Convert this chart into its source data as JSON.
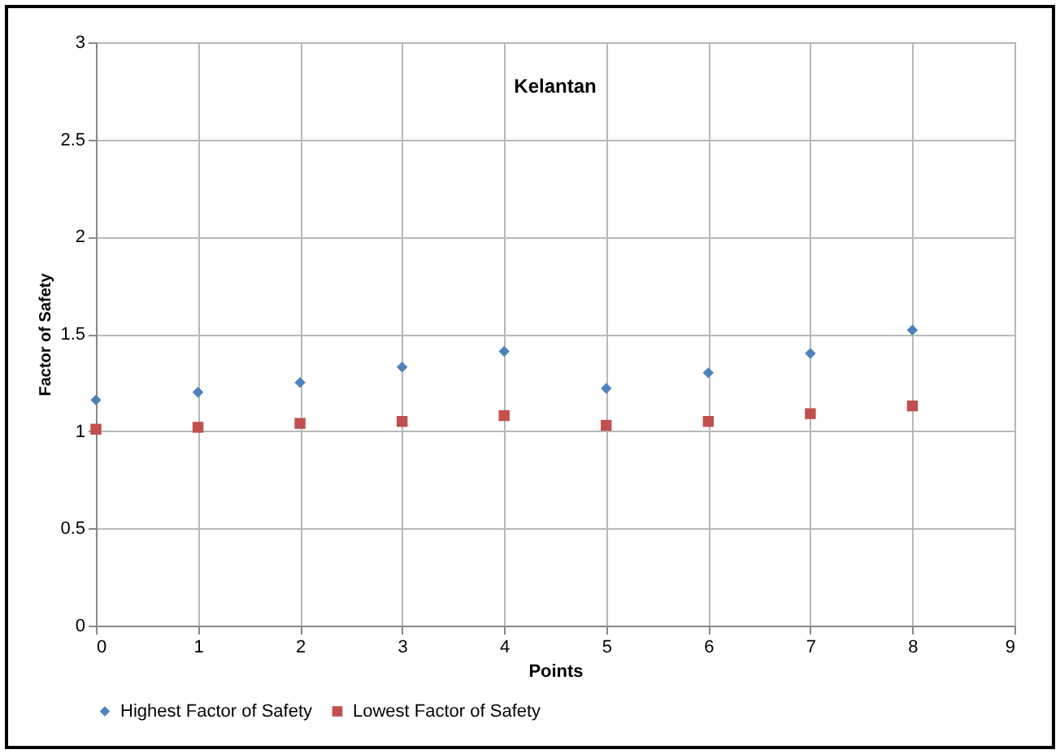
{
  "chart_data": {
    "type": "scatter",
    "title": "Kelantan",
    "xlabel": "Points",
    "ylabel": "Factor of Safety",
    "x": [
      0,
      1,
      2,
      3,
      4,
      5,
      6,
      7,
      8
    ],
    "series": [
      {
        "name": "Highest Factor of Safety",
        "color": "#4f81bd",
        "marker": "diamond",
        "values": [
          1.16,
          1.2,
          1.25,
          1.33,
          1.41,
          1.22,
          1.3,
          1.4,
          1.52
        ]
      },
      {
        "name": "Lowest Factor of Safety",
        "color": "#c0504d",
        "marker": "square",
        "values": [
          1.01,
          1.02,
          1.04,
          1.05,
          1.08,
          1.03,
          1.05,
          1.09,
          1.13
        ]
      }
    ],
    "xlim": [
      0,
      9
    ],
    "xticks": [
      0,
      1,
      2,
      3,
      4,
      5,
      6,
      7,
      8,
      9
    ],
    "ylim": [
      0,
      3
    ],
    "yticks": [
      0,
      0.5,
      1,
      1.5,
      2,
      2.5,
      3
    ],
    "grid": true,
    "legend": "bottom"
  }
}
